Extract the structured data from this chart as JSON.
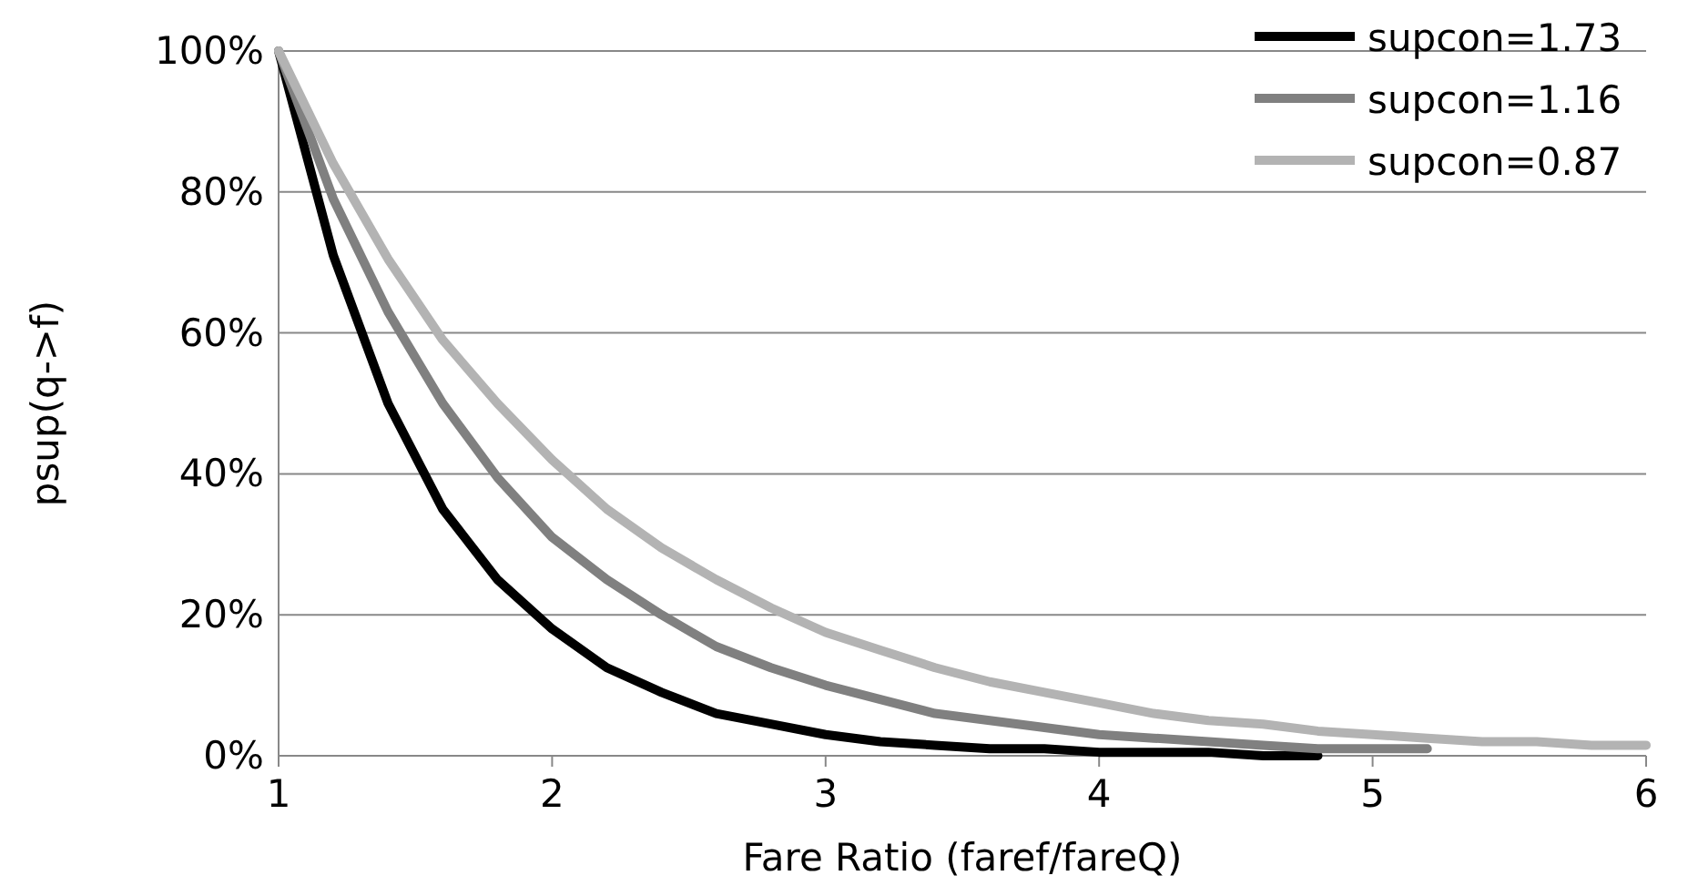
{
  "chart_data": {
    "type": "line",
    "xlabel": "Fare Ratio (faref/fareQ)",
    "ylabel": "psup(q->f)",
    "xlim": [
      1,
      6
    ],
    "xticks": [
      1,
      2,
      3,
      4,
      5,
      6
    ],
    "ylim": [
      0,
      100
    ],
    "yticks": [
      {
        "value": 0,
        "label": "0%"
      },
      {
        "value": 20,
        "label": "20%"
      },
      {
        "value": 40,
        "label": "40%"
      },
      {
        "value": 60,
        "label": "60%"
      },
      {
        "value": 80,
        "label": "80%"
      },
      {
        "value": 100,
        "label": "100%"
      }
    ],
    "grid": "y",
    "legend": "top right",
    "marker": "none",
    "line_style": "solid",
    "series": [
      {
        "name": "supcon=1.73",
        "color": "#000000",
        "x": [
          1,
          1.2,
          1.4,
          1.6,
          1.8,
          2,
          2.2,
          2.4,
          2.6,
          2.8,
          3,
          3.2,
          3.4,
          3.6,
          3.8,
          4,
          4.2,
          4.4,
          4.6,
          4.8
        ],
        "values": [
          100,
          71,
          50,
          35,
          25,
          18,
          12.5,
          9,
          6,
          4.5,
          3,
          2,
          1.5,
          1,
          1,
          0.5,
          0.5,
          0.5,
          0,
          0
        ]
      },
      {
        "name": "supcon=1.16",
        "color": "#808080",
        "x": [
          1,
          1.2,
          1.4,
          1.6,
          1.8,
          2,
          2.2,
          2.4,
          2.6,
          2.8,
          3,
          3.2,
          3.4,
          3.6,
          3.8,
          4,
          4.2,
          4.4,
          4.6,
          4.8,
          5,
          5.2
        ],
        "values": [
          100,
          79,
          63,
          50,
          39.5,
          31,
          25,
          20,
          15.5,
          12.5,
          10,
          8,
          6,
          5,
          4,
          3,
          2.5,
          2,
          1.5,
          1,
          1,
          1
        ]
      },
      {
        "name": "supcon=0.87",
        "color": "#b3b3b3",
        "x": [
          1,
          1.2,
          1.4,
          1.6,
          1.8,
          2,
          2.2,
          2.4,
          2.6,
          2.8,
          3,
          3.2,
          3.4,
          3.6,
          3.8,
          4,
          4.2,
          4.4,
          4.6,
          4.8,
          5,
          5.2,
          5.4,
          5.6,
          5.8,
          6
        ],
        "values": [
          100,
          84,
          70.5,
          59,
          50,
          42,
          35,
          29.5,
          25,
          21,
          17.5,
          15,
          12.5,
          10.5,
          9,
          7.5,
          6,
          5,
          4.5,
          3.5,
          3,
          2.5,
          2,
          2,
          1.5,
          1.5
        ]
      }
    ]
  }
}
